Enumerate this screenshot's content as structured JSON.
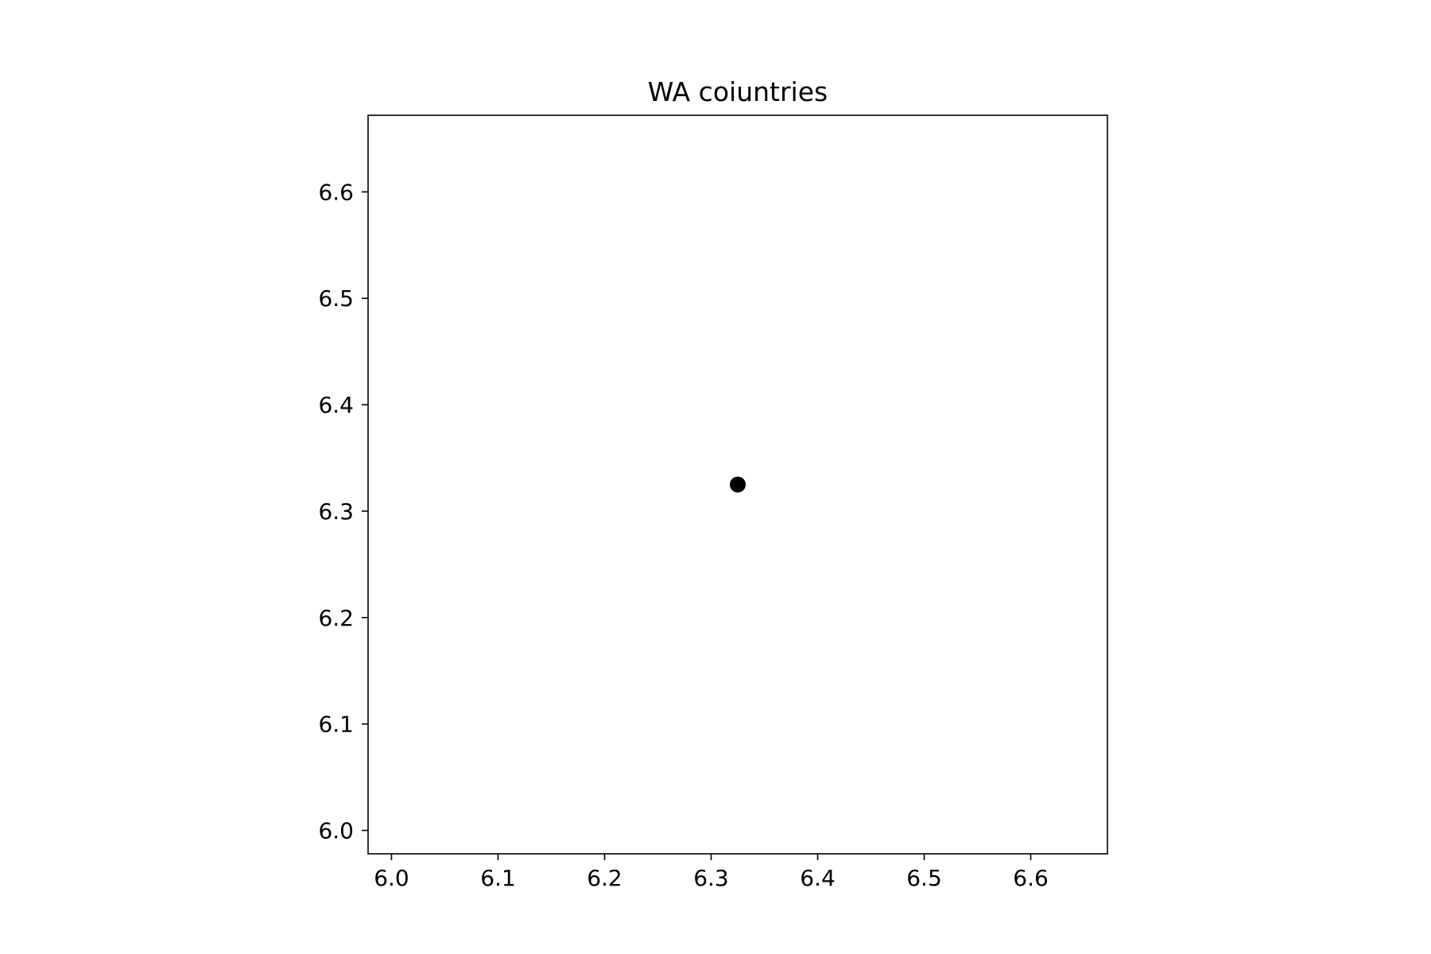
{
  "chart_data": {
    "type": "scatter",
    "title": "WA coiuntries",
    "xlabel": "",
    "ylabel": "",
    "xlim": [
      5.978,
      6.672
    ],
    "ylim": [
      5.978,
      6.672
    ],
    "x_ticks": [
      6.0,
      6.1,
      6.2,
      6.3,
      6.4,
      6.5,
      6.6
    ],
    "y_ticks": [
      6.0,
      6.1,
      6.2,
      6.3,
      6.4,
      6.5,
      6.6
    ],
    "x_tick_labels": [
      "6.0",
      "6.1",
      "6.2",
      "6.3",
      "6.4",
      "6.5",
      "6.6"
    ],
    "y_tick_labels": [
      "6.0",
      "6.1",
      "6.2",
      "6.3",
      "6.4",
      "6.5",
      "6.6"
    ],
    "grid": false,
    "points": [
      {
        "x": 6.325,
        "y": 6.325
      }
    ],
    "marker_color": "#000000"
  }
}
